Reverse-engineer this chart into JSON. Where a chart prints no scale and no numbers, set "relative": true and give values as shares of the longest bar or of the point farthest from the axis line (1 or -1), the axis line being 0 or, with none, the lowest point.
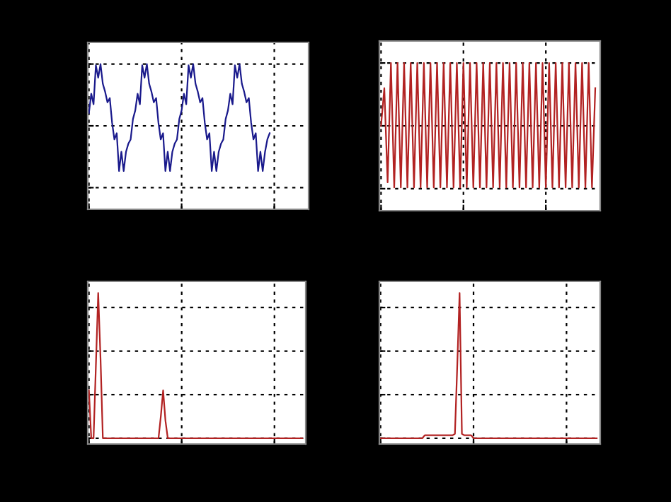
{
  "chart_data": [
    {
      "type": "line",
      "relative": true,
      "grid": true,
      "tick_labels": false,
      "categories": [
        null,
        null,
        null,
        null,
        null,
        null,
        null,
        null,
        null,
        null,
        null,
        null,
        null,
        null,
        null,
        null,
        null,
        null,
        null,
        null,
        null,
        null,
        null,
        null,
        null,
        null,
        null,
        null,
        null,
        null,
        null,
        null,
        null,
        null,
        null,
        null,
        null,
        null,
        null,
        null,
        null,
        null,
        null,
        null,
        null,
        null,
        null,
        null,
        null,
        null,
        null,
        null,
        null,
        null,
        null,
        null,
        null,
        null,
        null,
        null,
        null,
        null,
        null,
        null,
        null,
        null,
        null,
        null,
        null,
        null,
        null,
        null,
        null,
        null,
        null,
        null,
        null,
        null,
        null
      ],
      "series": [
        {
          "color": "#1a1a8c",
          "values": [
            0.21,
            0.52,
            0.35,
            0.98,
            0.78,
            1.0,
            0.68,
            0.55,
            0.38,
            0.45,
            0.05,
            -0.22,
            -0.12,
            -0.73,
            -0.42,
            -0.73,
            -0.42,
            -0.29,
            -0.22,
            0.11,
            0.25,
            0.52,
            0.35,
            0.98,
            0.78,
            1.0,
            0.68,
            0.55,
            0.38,
            0.45,
            0.05,
            -0.22,
            -0.12,
            -0.73,
            -0.42,
            -0.73,
            -0.42,
            -0.29,
            -0.22,
            0.11,
            0.25,
            0.52,
            0.35,
            0.98,
            0.78,
            1.0,
            0.68,
            0.55,
            0.38,
            0.45,
            0.05,
            -0.22,
            -0.12,
            -0.73,
            -0.42,
            -0.73,
            -0.42,
            -0.29,
            -0.22,
            0.11,
            0.25,
            0.52,
            0.35,
            0.98,
            0.78,
            1.0,
            0.68,
            0.55,
            0.38,
            0.45,
            0.05,
            -0.22,
            -0.12,
            -0.73,
            -0.42,
            -0.73,
            -0.42,
            -0.22,
            -0.12
          ]
        }
      ]
    },
    {
      "type": "line",
      "relative": true,
      "grid": true,
      "tick_labels": false,
      "categories": [
        null,
        null,
        null,
        null,
        null,
        null,
        null,
        null,
        null,
        null,
        null,
        null,
        null,
        null,
        null,
        null,
        null,
        null,
        null,
        null,
        null,
        null,
        null,
        null,
        null,
        null,
        null,
        null,
        null,
        null,
        null,
        null,
        null,
        null,
        null,
        null,
        null,
        null,
        null,
        null,
        null,
        null,
        null,
        null,
        null,
        null,
        null,
        null,
        null,
        null,
        null,
        null,
        null,
        null,
        null,
        null,
        null,
        null,
        null,
        null,
        null,
        null,
        null,
        null,
        null,
        null
      ],
      "series": [
        {
          "color": "#b22222",
          "values": [
            0.0,
            0.6,
            -0.9,
            1.0,
            -0.98,
            1.0,
            -0.98,
            1.0,
            -0.98,
            1.0,
            -0.98,
            1.0,
            -0.98,
            1.0,
            -0.98,
            1.0,
            -0.98,
            1.0,
            -0.98,
            1.0,
            -0.98,
            1.0,
            -0.98,
            1.0,
            -0.98,
            1.0,
            -0.98,
            1.0,
            -0.98,
            1.0,
            -0.98,
            1.0,
            -0.98,
            1.0,
            -0.98,
            1.0,
            -0.98,
            1.0,
            -0.98,
            1.0,
            -0.98,
            1.0,
            -0.98,
            1.0,
            -0.98,
            1.0,
            -0.98,
            1.0,
            -0.98,
            1.0,
            -0.98,
            1.0,
            -0.98,
            1.0,
            -0.98,
            1.0,
            -0.98,
            1.0,
            -0.98,
            1.0,
            -0.98,
            1.0,
            -0.98,
            1.0,
            -0.98,
            0.6
          ]
        }
      ]
    },
    {
      "type": "line",
      "relative": true,
      "grid": true,
      "tick_labels": false,
      "categories": [
        null,
        null,
        null,
        null,
        null,
        null,
        null,
        null,
        null,
        null,
        null,
        null,
        null,
        null,
        null,
        null,
        null,
        null,
        null,
        null,
        null,
        null,
        null,
        null,
        null,
        null,
        null,
        null,
        null,
        null,
        null,
        null,
        null,
        null,
        null,
        null,
        null,
        null,
        null,
        null,
        null,
        null,
        null,
        null,
        null,
        null,
        null,
        null,
        null,
        null,
        null,
        null,
        null,
        null,
        null,
        null,
        null,
        null,
        null,
        null,
        null,
        null,
        null,
        null,
        null,
        null,
        null,
        null,
        null,
        null,
        null,
        null,
        null,
        null,
        null,
        null,
        null,
        null,
        null,
        null,
        null,
        null,
        null,
        null,
        null,
        null,
        null,
        null,
        null,
        null,
        null,
        null,
        null
      ],
      "series": [
        {
          "color": "#b22222",
          "values": [
            0.33,
            0,
            0,
            0.5,
            1.0,
            0.55,
            0,
            0,
            0,
            0,
            0,
            0,
            0,
            0,
            0,
            0,
            0,
            0,
            0,
            0,
            0,
            0,
            0,
            0,
            0,
            0,
            0,
            0,
            0,
            0,
            0,
            0.15,
            0.33,
            0.12,
            0,
            0,
            0,
            0,
            0,
            0,
            0,
            0,
            0,
            0,
            0,
            0,
            0,
            0,
            0,
            0,
            0,
            0,
            0,
            0,
            0,
            0,
            0,
            0,
            0,
            0,
            0,
            0,
            0,
            0,
            0,
            0,
            0,
            0,
            0,
            0,
            0,
            0,
            0,
            0,
            0,
            0,
            0,
            0,
            0,
            0,
            0,
            0,
            0,
            0,
            0,
            0,
            0,
            0,
            0,
            0,
            0,
            0,
            0
          ]
        }
      ]
    },
    {
      "type": "line",
      "relative": true,
      "grid": true,
      "tick_labels": false,
      "categories": [
        null,
        null,
        null,
        null,
        null,
        null,
        null,
        null,
        null,
        null,
        null,
        null,
        null,
        null,
        null,
        null,
        null,
        null,
        null,
        null,
        null,
        null,
        null,
        null,
        null,
        null,
        null,
        null,
        null,
        null,
        null,
        null,
        null,
        null,
        null,
        null,
        null,
        null,
        null,
        null,
        null,
        null,
        null,
        null,
        null,
        null,
        null,
        null,
        null,
        null,
        null,
        null,
        null,
        null,
        null,
        null,
        null,
        null,
        null,
        null,
        null,
        null,
        null,
        null,
        null,
        null,
        null,
        null,
        null,
        null,
        null,
        null,
        null,
        null,
        null,
        null,
        null,
        null,
        null,
        null,
        null,
        null,
        null,
        null,
        null,
        null,
        null,
        null,
        null,
        null,
        null,
        null,
        null,
        null
      ],
      "series": [
        {
          "color": "#b22222",
          "values": [
            0,
            0,
            0,
            0,
            0,
            0,
            0,
            0,
            0,
            0,
            0,
            0,
            0,
            0,
            0,
            0,
            0,
            0,
            0,
            0.02,
            0.02,
            0.02,
            0.02,
            0.02,
            0.02,
            0.02,
            0.02,
            0.02,
            0.02,
            0.02,
            0.02,
            0.02,
            0.03,
            0.5,
            1.0,
            0.03,
            0.02,
            0.02,
            0.02,
            0.02,
            0,
            0,
            0,
            0,
            0,
            0,
            0,
            0,
            0,
            0,
            0,
            0,
            0,
            0,
            0,
            0,
            0,
            0,
            0,
            0,
            0,
            0,
            0,
            0,
            0,
            0,
            0,
            0,
            0,
            0,
            0,
            0,
            0,
            0,
            0,
            0,
            0,
            0,
            0,
            0,
            0,
            0,
            0,
            0,
            0,
            0,
            0,
            0,
            0,
            0,
            0,
            0,
            0,
            0
          ]
        }
      ]
    }
  ]
}
